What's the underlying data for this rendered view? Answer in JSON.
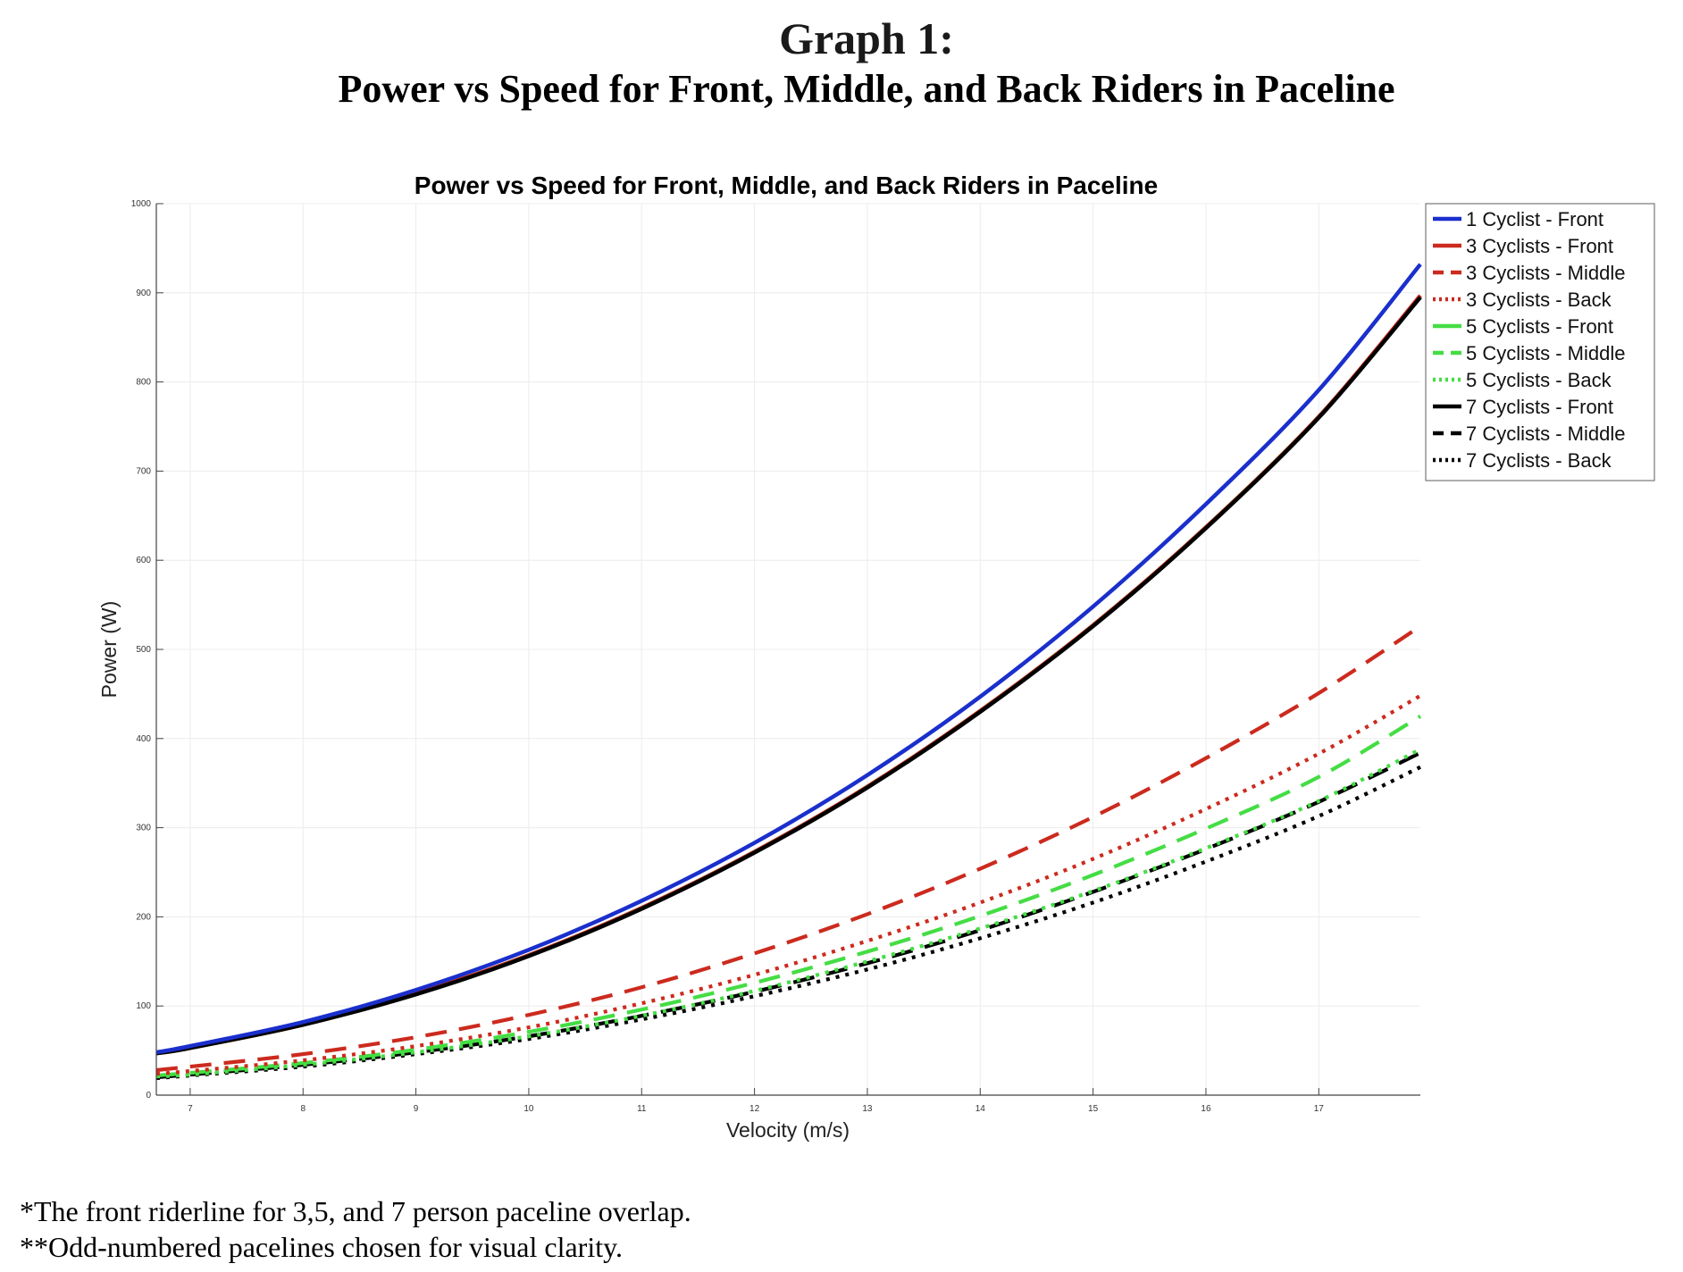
{
  "page": {
    "title": "Graph 1:",
    "subtitle": "Power vs Speed for Front, Middle, and Back Riders in Paceline",
    "notes": [
      "*The front riderline for 3,5, and 7 person paceline overlap.",
      "**Odd-numbered pacelines chosen for visual clarity."
    ]
  },
  "chart_data": {
    "type": "line",
    "title": "Power vs Speed for Front, Middle, and Back Riders in Paceline",
    "xlabel": "Velocity (m/s)",
    "ylabel": "Power (W)",
    "xlim": [
      6.7,
      17.9
    ],
    "ylim": [
      0,
      1000
    ],
    "xticks": [
      7,
      8,
      9,
      10,
      11,
      12,
      13,
      14,
      15,
      16,
      17
    ],
    "yticks": [
      0,
      100,
      200,
      300,
      400,
      500,
      600,
      700,
      800,
      900,
      1000
    ],
    "grid": true,
    "legend_position": "top-right",
    "x": [
      6.7,
      7,
      8,
      9,
      10,
      11,
      12,
      13,
      14,
      15,
      16,
      17,
      17.9
    ],
    "series": [
      {
        "name": "1 Cyclist - Front",
        "color": "#1a2fcc",
        "dash": "solid",
        "values": [
          48,
          55,
          82,
          118,
          163,
          218,
          283,
          359,
          447,
          548,
          663,
          791,
          932
        ]
      },
      {
        "name": "3 Cyclists - Front",
        "color": "#cc2a1e",
        "dash": "solid",
        "values": [
          47,
          53,
          79,
          114,
          157,
          210,
          273,
          346,
          431,
          527,
          637,
          761,
          897
        ]
      },
      {
        "name": "3 Cyclists - Middle",
        "color": "#cc2a1e",
        "dash": "dash",
        "values": [
          28,
          32,
          46,
          65,
          90,
          121,
          159,
          203,
          254,
          312,
          378,
          451,
          526
        ]
      },
      {
        "name": "3 Cyclists - Back",
        "color": "#cc2a1e",
        "dash": "dot",
        "values": [
          24,
          27,
          39,
          55,
          76,
          103,
          135,
          173,
          216,
          265,
          321,
          383,
          448
        ]
      },
      {
        "name": "5 Cyclists - Front",
        "color": "#44dd44",
        "dash": "solid",
        "values": [
          47,
          53,
          79,
          114,
          157,
          210,
          273,
          346,
          431,
          527,
          637,
          761,
          896
        ]
      },
      {
        "name": "5 Cyclists - Middle",
        "color": "#44dd44",
        "dash": "dash",
        "values": [
          22,
          25,
          36,
          51,
          71,
          96,
          126,
          161,
          201,
          247,
          299,
          357,
          425
        ]
      },
      {
        "name": "5 Cyclists - Back",
        "color": "#44dd44",
        "dash": "dot",
        "values": [
          21,
          23,
          34,
          48,
          66,
          89,
          117,
          150,
          187,
          229,
          277,
          330,
          388
        ]
      },
      {
        "name": "7 Cyclists - Front",
        "color": "#000000",
        "dash": "solid",
        "values": [
          47,
          53,
          79,
          113,
          156,
          209,
          272,
          345,
          430,
          526,
          636,
          760,
          895
        ]
      },
      {
        "name": "7 Cyclists - Middle",
        "color": "#000000",
        "dash": "dash",
        "values": [
          20,
          23,
          34,
          48,
          66,
          89,
          116,
          148,
          185,
          228,
          276,
          329,
          384
        ]
      },
      {
        "name": "7 Cyclists - Back",
        "color": "#000000",
        "dash": "dot",
        "values": [
          19,
          22,
          32,
          46,
          63,
          85,
          111,
          141,
          176,
          216,
          262,
          313,
          368
        ]
      }
    ]
  }
}
